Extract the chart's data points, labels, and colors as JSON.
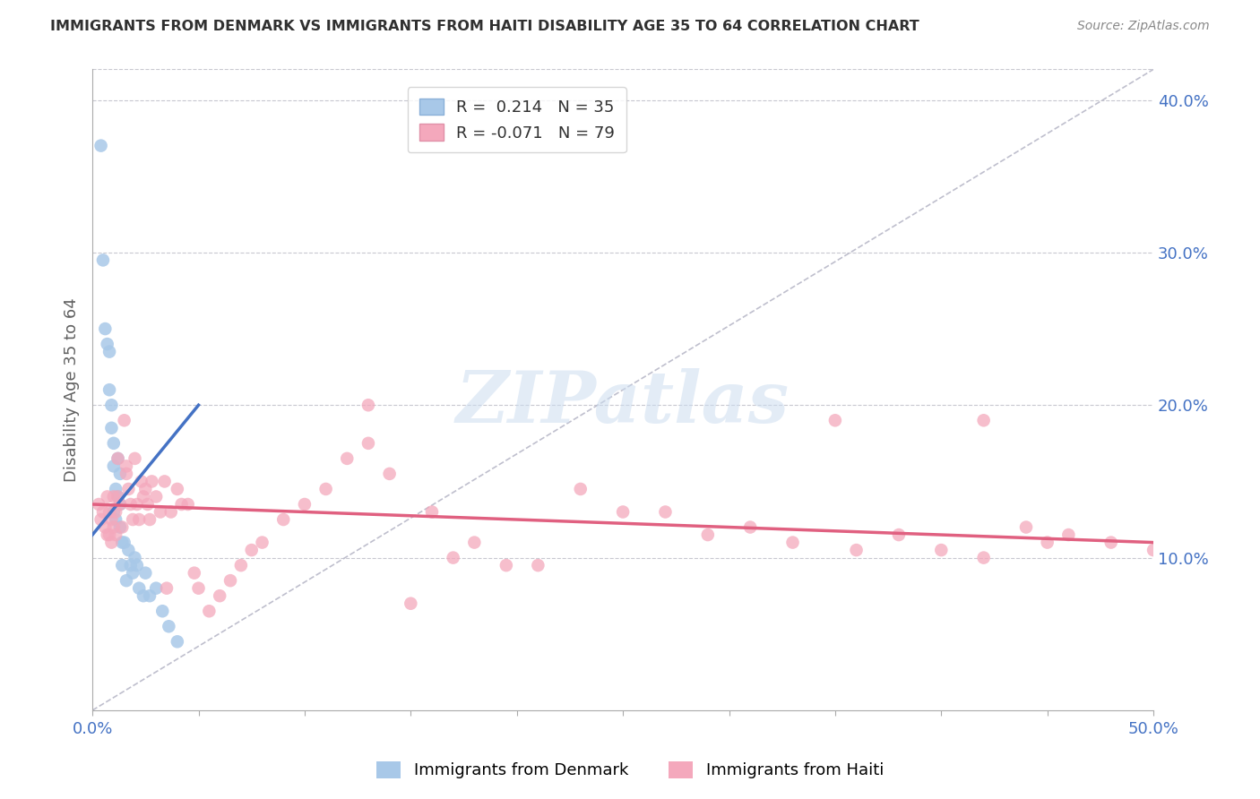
{
  "title": "IMMIGRANTS FROM DENMARK VS IMMIGRANTS FROM HAITI DISABILITY AGE 35 TO 64 CORRELATION CHART",
  "source": "Source: ZipAtlas.com",
  "ylabel": "Disability Age 35 to 64",
  "xlim": [
    0.0,
    0.5
  ],
  "ylim": [
    0.0,
    0.42
  ],
  "yticks_right": [
    0.1,
    0.2,
    0.3,
    0.4
  ],
  "ytick_labels_right": [
    "10.0%",
    "20.0%",
    "30.0%",
    "40.0%"
  ],
  "denmark_color": "#a8c8e8",
  "haiti_color": "#f4a8bc",
  "denmark_line_color": "#4472c4",
  "haiti_line_color": "#e06080",
  "diagonal_color": "#b8b8c8",
  "legend_denmark_R": "0.214",
  "legend_denmark_N": "35",
  "legend_haiti_R": "-0.071",
  "legend_haiti_N": "79",
  "denmark_scatter_x": [
    0.004,
    0.005,
    0.006,
    0.007,
    0.008,
    0.008,
    0.009,
    0.009,
    0.01,
    0.01,
    0.01,
    0.011,
    0.011,
    0.012,
    0.012,
    0.013,
    0.013,
    0.013,
    0.014,
    0.014,
    0.015,
    0.016,
    0.017,
    0.018,
    0.019,
    0.02,
    0.021,
    0.022,
    0.024,
    0.025,
    0.027,
    0.03,
    0.033,
    0.036,
    0.04
  ],
  "denmark_scatter_y": [
    0.37,
    0.295,
    0.25,
    0.24,
    0.235,
    0.21,
    0.2,
    0.185,
    0.175,
    0.16,
    0.13,
    0.145,
    0.125,
    0.165,
    0.14,
    0.155,
    0.135,
    0.12,
    0.11,
    0.095,
    0.11,
    0.085,
    0.105,
    0.095,
    0.09,
    0.1,
    0.095,
    0.08,
    0.075,
    0.09,
    0.075,
    0.08,
    0.065,
    0.055,
    0.045
  ],
  "haiti_scatter_x": [
    0.003,
    0.004,
    0.005,
    0.006,
    0.007,
    0.007,
    0.008,
    0.008,
    0.009,
    0.009,
    0.01,
    0.01,
    0.011,
    0.011,
    0.012,
    0.012,
    0.013,
    0.014,
    0.015,
    0.016,
    0.016,
    0.017,
    0.018,
    0.019,
    0.02,
    0.021,
    0.022,
    0.023,
    0.024,
    0.025,
    0.026,
    0.027,
    0.028,
    0.03,
    0.032,
    0.034,
    0.035,
    0.037,
    0.04,
    0.042,
    0.045,
    0.048,
    0.05,
    0.055,
    0.06,
    0.065,
    0.07,
    0.075,
    0.08,
    0.09,
    0.1,
    0.11,
    0.12,
    0.13,
    0.14,
    0.15,
    0.16,
    0.17,
    0.18,
    0.195,
    0.21,
    0.23,
    0.25,
    0.27,
    0.29,
    0.31,
    0.33,
    0.36,
    0.38,
    0.4,
    0.42,
    0.44,
    0.46,
    0.48,
    0.5,
    0.35,
    0.42,
    0.13,
    0.45
  ],
  "haiti_scatter_y": [
    0.135,
    0.125,
    0.13,
    0.12,
    0.14,
    0.115,
    0.13,
    0.115,
    0.125,
    0.11,
    0.14,
    0.12,
    0.13,
    0.115,
    0.165,
    0.14,
    0.135,
    0.12,
    0.19,
    0.16,
    0.155,
    0.145,
    0.135,
    0.125,
    0.165,
    0.135,
    0.125,
    0.15,
    0.14,
    0.145,
    0.135,
    0.125,
    0.15,
    0.14,
    0.13,
    0.15,
    0.08,
    0.13,
    0.145,
    0.135,
    0.135,
    0.09,
    0.08,
    0.065,
    0.075,
    0.085,
    0.095,
    0.105,
    0.11,
    0.125,
    0.135,
    0.145,
    0.165,
    0.175,
    0.155,
    0.07,
    0.13,
    0.1,
    0.11,
    0.095,
    0.095,
    0.145,
    0.13,
    0.13,
    0.115,
    0.12,
    0.11,
    0.105,
    0.115,
    0.105,
    0.1,
    0.12,
    0.115,
    0.11,
    0.105,
    0.19,
    0.19,
    0.2,
    0.11
  ],
  "denmark_line_x": [
    0.0,
    0.05
  ],
  "denmark_line_y": [
    0.115,
    0.2
  ],
  "haiti_line_x": [
    0.0,
    0.5
  ],
  "haiti_line_y": [
    0.135,
    0.11
  ],
  "watermark_text": "ZIPatlas",
  "background_color": "#ffffff",
  "grid_color": "#c8c8d0",
  "title_color": "#303030",
  "axis_label_color": "#4472c4",
  "tick_label_color": "#4472c4",
  "ylabel_color": "#606060"
}
